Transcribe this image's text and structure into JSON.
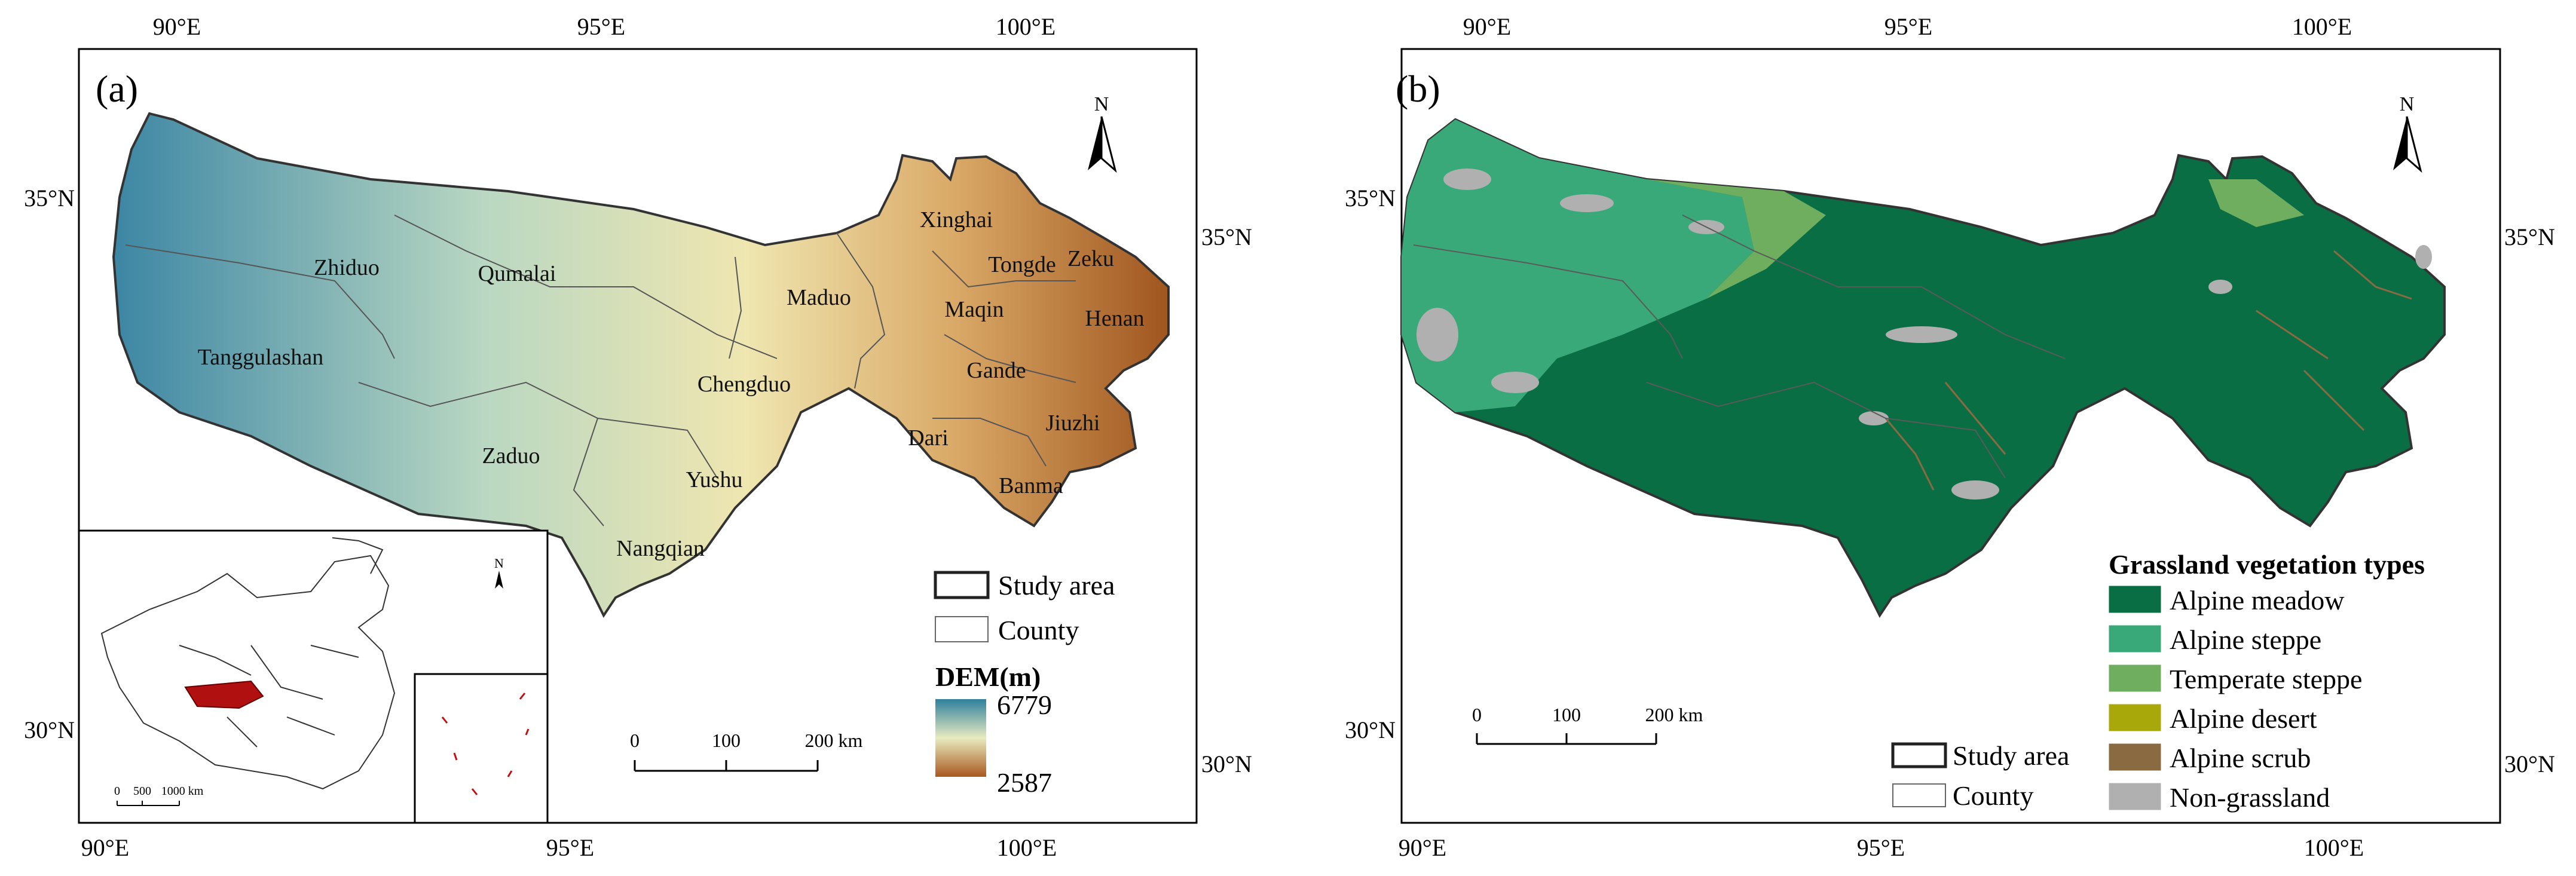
{
  "panel_a": {
    "label": "(a)",
    "top_ticks": [
      "90°E",
      "95°E",
      "100°E"
    ],
    "bottom_ticks": [
      "90°E",
      "95°E",
      "100°E"
    ],
    "left_ticks": [
      "35°N",
      "30°N"
    ],
    "right_ticks": [
      "35°N",
      "30°N"
    ],
    "north": "N",
    "counties": [
      {
        "name": "Zhiduo"
      },
      {
        "name": "Qumalai"
      },
      {
        "name": "Tanggulashan"
      },
      {
        "name": "Zaduo"
      },
      {
        "name": "Chengduo"
      },
      {
        "name": "Yushu"
      },
      {
        "name": "Nangqian"
      },
      {
        "name": "Maduo"
      },
      {
        "name": "Xinghai"
      },
      {
        "name": "Tongde"
      },
      {
        "name": "Zeku"
      },
      {
        "name": "Maqin"
      },
      {
        "name": "Henan"
      },
      {
        "name": "Gande"
      },
      {
        "name": "Dari"
      },
      {
        "name": "Jiuzhi"
      },
      {
        "name": "Banma"
      }
    ],
    "legend": {
      "study_area": "Study area",
      "county": "County",
      "dem_title": "DEM(m)",
      "dem_max": "6779",
      "dem_min": "2587",
      "dem_colors": [
        "#2f7f9e",
        "#e8ecc0",
        "#a9581e"
      ]
    },
    "scalebar": {
      "labels": [
        "0",
        "100",
        "200 km"
      ]
    },
    "inset": {
      "scalebar_labels": [
        "0",
        "500",
        "1000 km"
      ],
      "north": "N",
      "highlight_color": "#b01010"
    }
  },
  "panel_b": {
    "label": "(b)",
    "top_ticks": [
      "90°E",
      "95°E",
      "100°E"
    ],
    "bottom_ticks": [
      "90°E",
      "95°E",
      "100°E"
    ],
    "left_ticks": [
      "35°N",
      "30°N"
    ],
    "right_ticks": [
      "35°N",
      "30°N"
    ],
    "north": "N",
    "scalebar": {
      "labels": [
        "0",
        "100",
        "200 km"
      ]
    },
    "boundary_legend": {
      "study_area": "Study area",
      "county": "County"
    },
    "legend_title": "Grassland vegetation types",
    "legend_items": [
      {
        "label": "Alpine meadow",
        "color": "#0a6e45"
      },
      {
        "label": "Alpine steppe",
        "color": "#39a97a"
      },
      {
        "label": "Temperate steppe",
        "color": "#6fae5e"
      },
      {
        "label": "Alpine desert",
        "color": "#a8a80a"
      },
      {
        "label": "Alpine scrub",
        "color": "#8a6a40"
      },
      {
        "label": "Non-grassland",
        "color": "#b0b0b0"
      }
    ]
  }
}
